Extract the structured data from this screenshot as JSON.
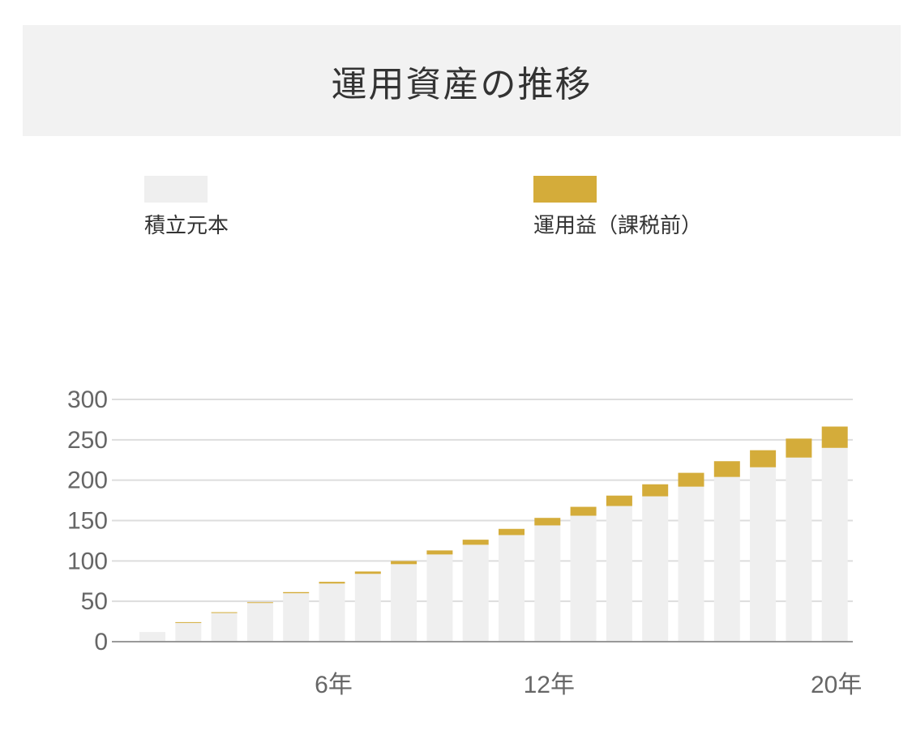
{
  "header": {
    "title": "運用資産の推移"
  },
  "legend": [
    {
      "label": "積立元本",
      "color": "#efefef"
    },
    {
      "label": "運用益（課税前）",
      "color": "#d4ac3a"
    }
  ],
  "colors": {
    "principal": "#efefef",
    "gain": "#d4ac3a",
    "grid": "#dddddd",
    "axis": "#999999"
  },
  "chart_data": {
    "type": "bar",
    "stacked": true,
    "title": "運用資産の推移",
    "xlabel": "",
    "ylabel": "",
    "ylim": [
      0,
      300
    ],
    "y_ticks": [
      "300",
      "250",
      "200",
      "150",
      "100",
      "50",
      "0"
    ],
    "x_tick_labels": [
      {
        "index": 5,
        "label": "6年"
      },
      {
        "index": 11,
        "label": "12年"
      },
      {
        "index": 19,
        "label": "20年"
      }
    ],
    "categories": [
      1,
      2,
      3,
      4,
      5,
      6,
      7,
      8,
      9,
      10,
      11,
      12,
      13,
      14,
      15,
      16,
      17,
      18,
      19,
      20
    ],
    "series": [
      {
        "name": "積立元本",
        "values": [
          12,
          24,
          36,
          48,
          60,
          72,
          84,
          96,
          108,
          120,
          132,
          144,
          156,
          168,
          180,
          192,
          204,
          216,
          228,
          240
        ]
      },
      {
        "name": "運用益（課税前）",
        "values": [
          0,
          0.2,
          0.5,
          0.9,
          1.4,
          2.1,
          2.9,
          3.9,
          5.0,
          6.3,
          7.7,
          9.3,
          11.0,
          12.9,
          14.9,
          17.1,
          19.5,
          21.1,
          23.5,
          26.4
        ]
      }
    ]
  }
}
